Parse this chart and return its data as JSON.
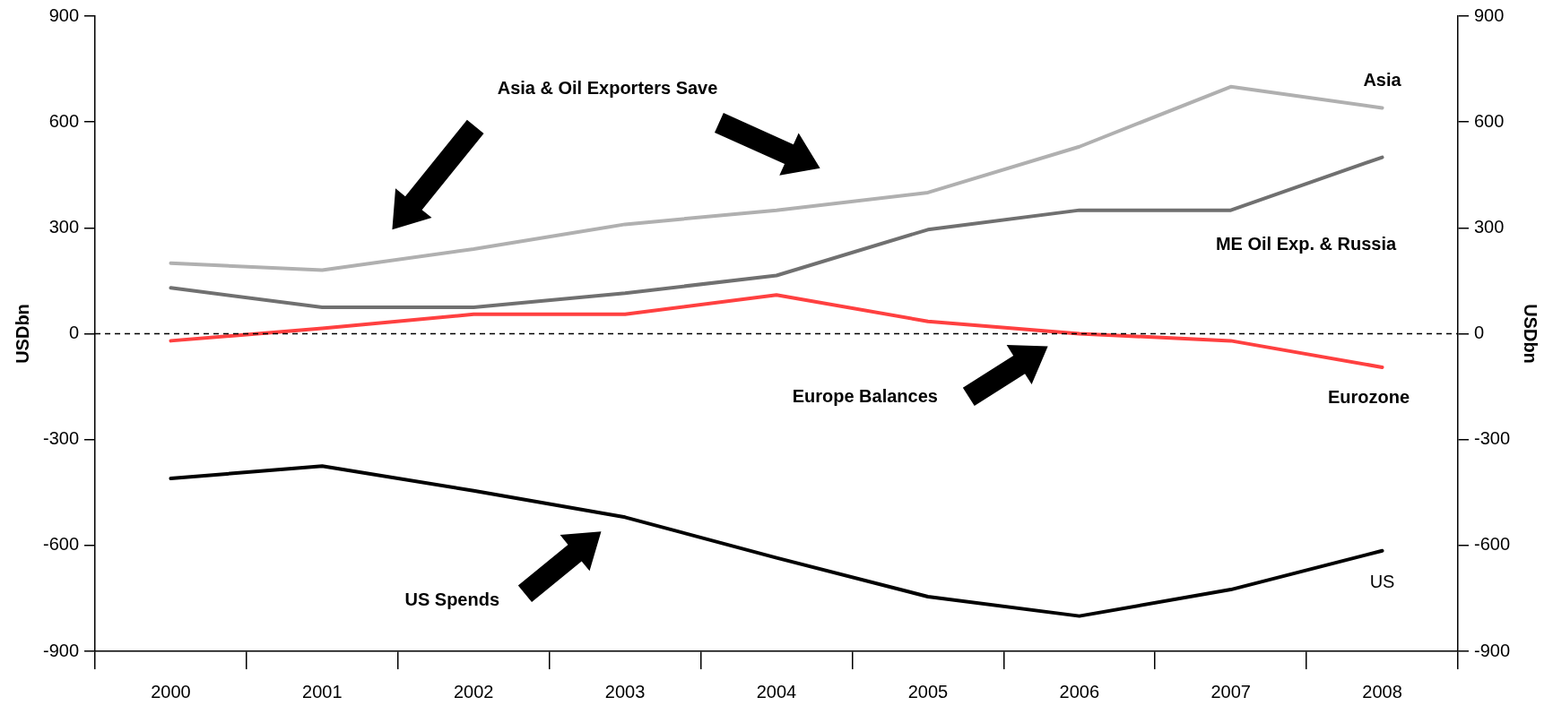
{
  "chart_data": {
    "type": "line",
    "ylabel": "USDbn",
    "y2label": "USDbn",
    "categories": [
      "2000",
      "2001",
      "2002",
      "2003",
      "2004",
      "2005",
      "2006",
      "2007",
      "2008"
    ],
    "series": [
      {
        "name": "Asia",
        "color": "#b0b0b0",
        "values": [
          200,
          180,
          240,
          310,
          350,
          400,
          530,
          700,
          640
        ]
      },
      {
        "name": "ME Oil Exp. & Russia",
        "color": "#707070",
        "values": [
          130,
          75,
          75,
          115,
          165,
          295,
          350,
          350,
          500
        ]
      },
      {
        "name": "Eurozone",
        "color": "#ff4040",
        "values": [
          -20,
          15,
          55,
          55,
          110,
          35,
          0,
          -20,
          -95
        ]
      },
      {
        "name": "US",
        "color": "#000000",
        "values": [
          -410,
          -375,
          -445,
          -520,
          -635,
          -745,
          -800,
          -725,
          -615
        ]
      }
    ],
    "ylim": [
      -900,
      900
    ],
    "yticks": [
      -900,
      -600,
      -300,
      0,
      300,
      600,
      900
    ],
    "y2lim": [
      -900,
      900
    ],
    "y2ticks": [
      -900,
      -600,
      -300,
      0,
      300,
      600,
      900
    ],
    "ref_lines": [
      {
        "axis": "y",
        "value": 0,
        "line_style": "dashed",
        "color": "#000000"
      }
    ],
    "annotations": [
      "Asia & Oil Exporters Save",
      "Europe Balances",
      "US Spends"
    ],
    "grid": false,
    "legend": false,
    "marker": "none",
    "line_style": "solid"
  }
}
